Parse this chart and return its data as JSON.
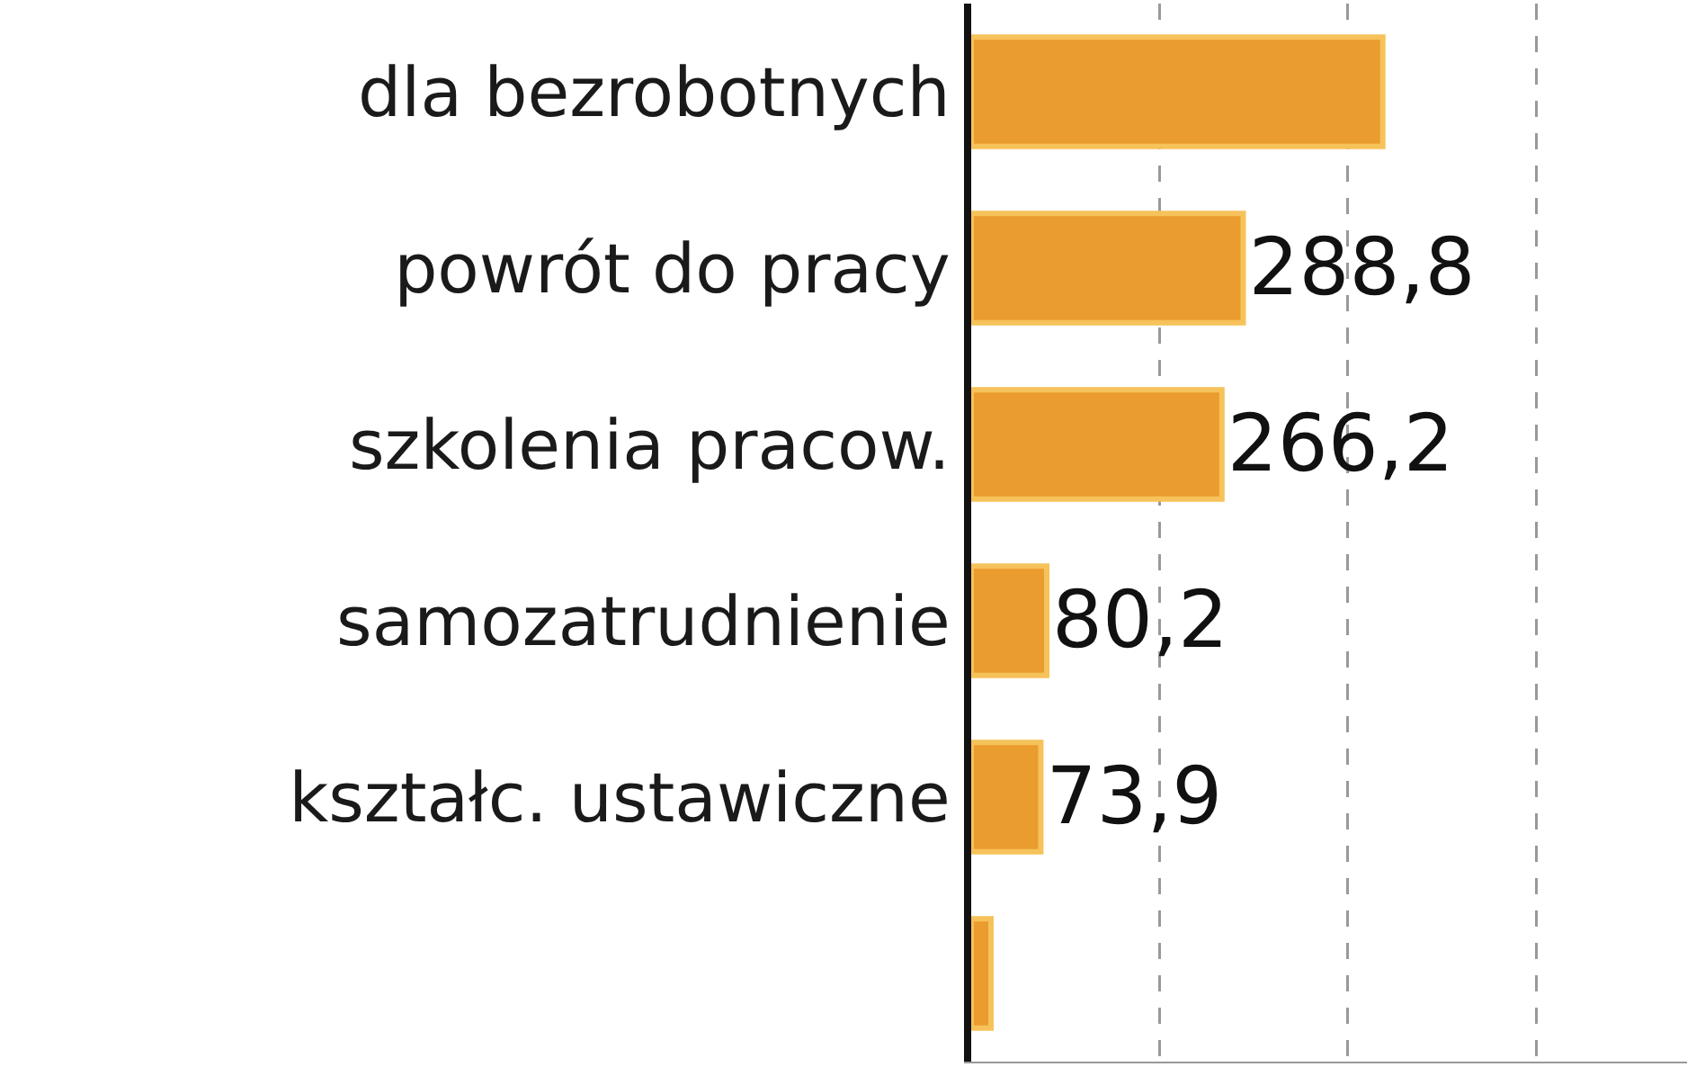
{
  "chart_data": {
    "type": "bar",
    "orientation": "horizontal",
    "categories": [
      "dla bezrobotnych",
      "powrót do pracy",
      "szkolenia pracow.",
      "samozatrudnienie",
      "kształc. ustawiczne",
      null
    ],
    "values": [
      437,
      288.8,
      266.2,
      80.2,
      73.9,
      21
    ],
    "value_labels": [
      null,
      "288,8",
      "266,2",
      "80,2",
      "73,9",
      null
    ],
    "color": "#eb9c2e",
    "xlim": [
      0,
      760
    ],
    "xticks": [
      {
        "value": 200,
        "label": null
      },
      {
        "value": 400,
        "label": null
      },
      {
        "value": 600,
        "label": null
      }
    ],
    "grid": "x",
    "tick_labels": "y"
  }
}
